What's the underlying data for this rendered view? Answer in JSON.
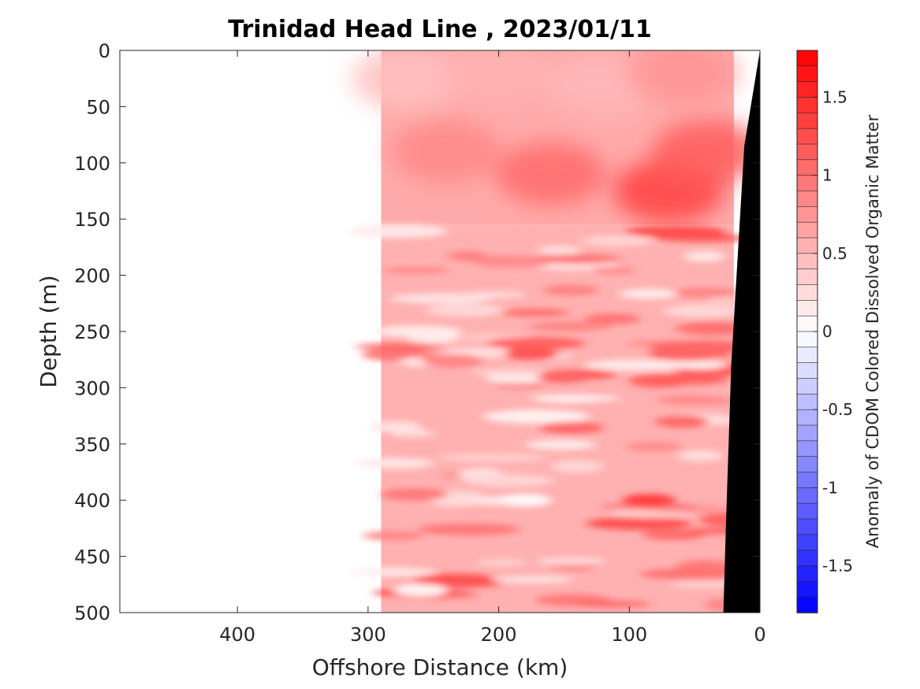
{
  "chart_data": {
    "type": "heatmap",
    "title": "Trinidad Head Line , 2023/01/11",
    "xlabel": "Offshore Distance (km)",
    "ylabel": "Depth (m)",
    "colorbar_label": "Anomaly of CDOM Colored Dissolved Organic Matter",
    "x_reversed": true,
    "y_reversed": true,
    "xlim": [
      0,
      490
    ],
    "ylim": [
      0,
      500
    ],
    "xticks": [
      400,
      300,
      200,
      100,
      0
    ],
    "yticks": [
      0,
      50,
      100,
      150,
      200,
      250,
      300,
      350,
      400,
      450,
      500
    ],
    "clim": [
      -1.8,
      1.8
    ],
    "cticks": [
      1.5,
      1,
      0.5,
      0,
      -0.5,
      -1,
      -1.5
    ],
    "colormap": {
      "negative": "#0000ff",
      "zero": "#ffffff",
      "positive": "#ff0000"
    },
    "data_extent_km": [
      20,
      290
    ],
    "bathymetry_color": "#000000",
    "bathymetry": [
      [
        0,
        0
      ],
      [
        12,
        85
      ],
      [
        22,
        280
      ],
      [
        26,
        420
      ],
      [
        28,
        500
      ]
    ],
    "regions": [
      {
        "depth_range": [
          0,
          155
        ],
        "description": "upper layer",
        "values": [
          {
            "x": 270,
            "y": 25,
            "v": 0.45
          },
          {
            "x": 200,
            "y": 20,
            "v": 0.55
          },
          {
            "x": 120,
            "y": 30,
            "v": 0.5
          },
          {
            "x": 60,
            "y": 20,
            "v": 0.75
          },
          {
            "x": 240,
            "y": 90,
            "v": 0.85
          },
          {
            "x": 160,
            "y": 110,
            "v": 1.05
          },
          {
            "x": 70,
            "y": 125,
            "v": 1.35
          },
          {
            "x": 40,
            "y": 90,
            "v": 1.15
          }
        ]
      },
      {
        "depth_range": [
          155,
          500
        ],
        "description": "banded lower layer",
        "values": [
          {
            "x": 175,
            "y": 270,
            "v": 1.2
          },
          {
            "x": 150,
            "y": 290,
            "v": 1.1
          },
          {
            "x": 85,
            "y": 400,
            "v": 1.35
          },
          {
            "x": 60,
            "y": 330,
            "v": 1.05
          },
          {
            "x": 250,
            "y": 255,
            "v": 0.15
          },
          {
            "x": 180,
            "y": 400,
            "v": 0.05
          },
          {
            "x": 140,
            "y": 370,
            "v": 0.3
          },
          {
            "x": 260,
            "y": 480,
            "v": 0.1
          }
        ]
      }
    ]
  }
}
